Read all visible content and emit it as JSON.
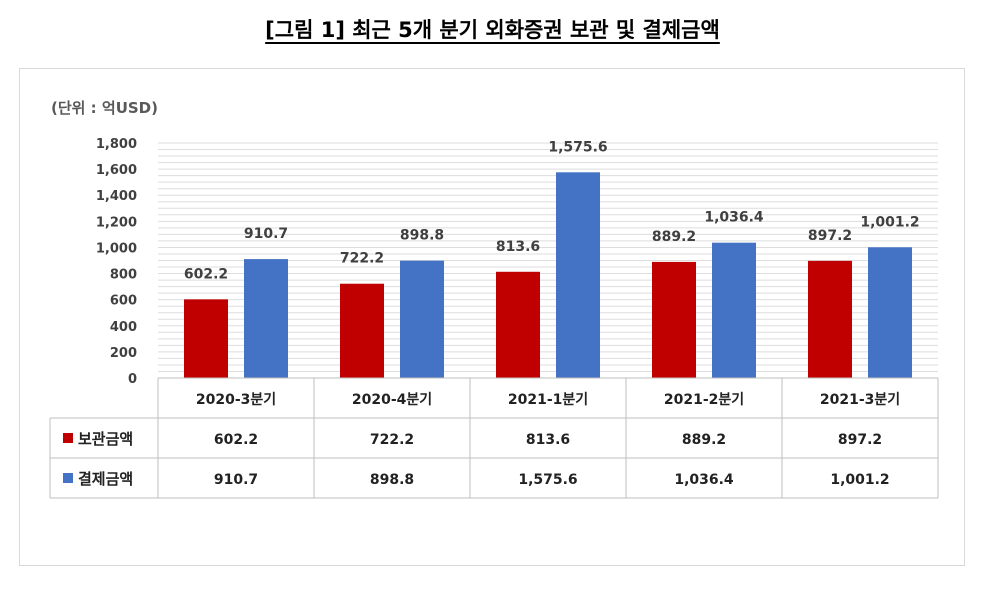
{
  "page_title": "[그림 1] 최근 5개 분기 외화증권 보관 및 결제금액",
  "chart_data": {
    "type": "bar",
    "title": "[그림 1] 최근 5개 분기 외화증권 보관 및 결제금액",
    "unit_label": "(단위 : 억USD)",
    "categories": [
      "2020-3분기",
      "2020-4분기",
      "2021-1분기",
      "2021-2분기",
      "2021-3분기"
    ],
    "series": [
      {
        "name": "보관금액",
        "color": "#c00000",
        "values": [
          602.2,
          722.2,
          813.6,
          889.2,
          897.2
        ],
        "labels": [
          "602.2",
          "722.2",
          "813.6",
          "889.2",
          "897.2"
        ]
      },
      {
        "name": "결제금액",
        "color": "#4472c4",
        "values": [
          910.7,
          898.8,
          1575.6,
          1036.4,
          1001.2
        ],
        "labels": [
          "910.7",
          "898.8",
          "1,575.6",
          "1,036.4",
          "1,001.2"
        ]
      }
    ],
    "ylim": [
      0,
      1800
    ],
    "yticks": [
      "0",
      "200",
      "400",
      "600",
      "800",
      "1,000",
      "1,200",
      "1,400",
      "1,600",
      "1,800"
    ],
    "grid": true,
    "legend": "data-table-left"
  }
}
